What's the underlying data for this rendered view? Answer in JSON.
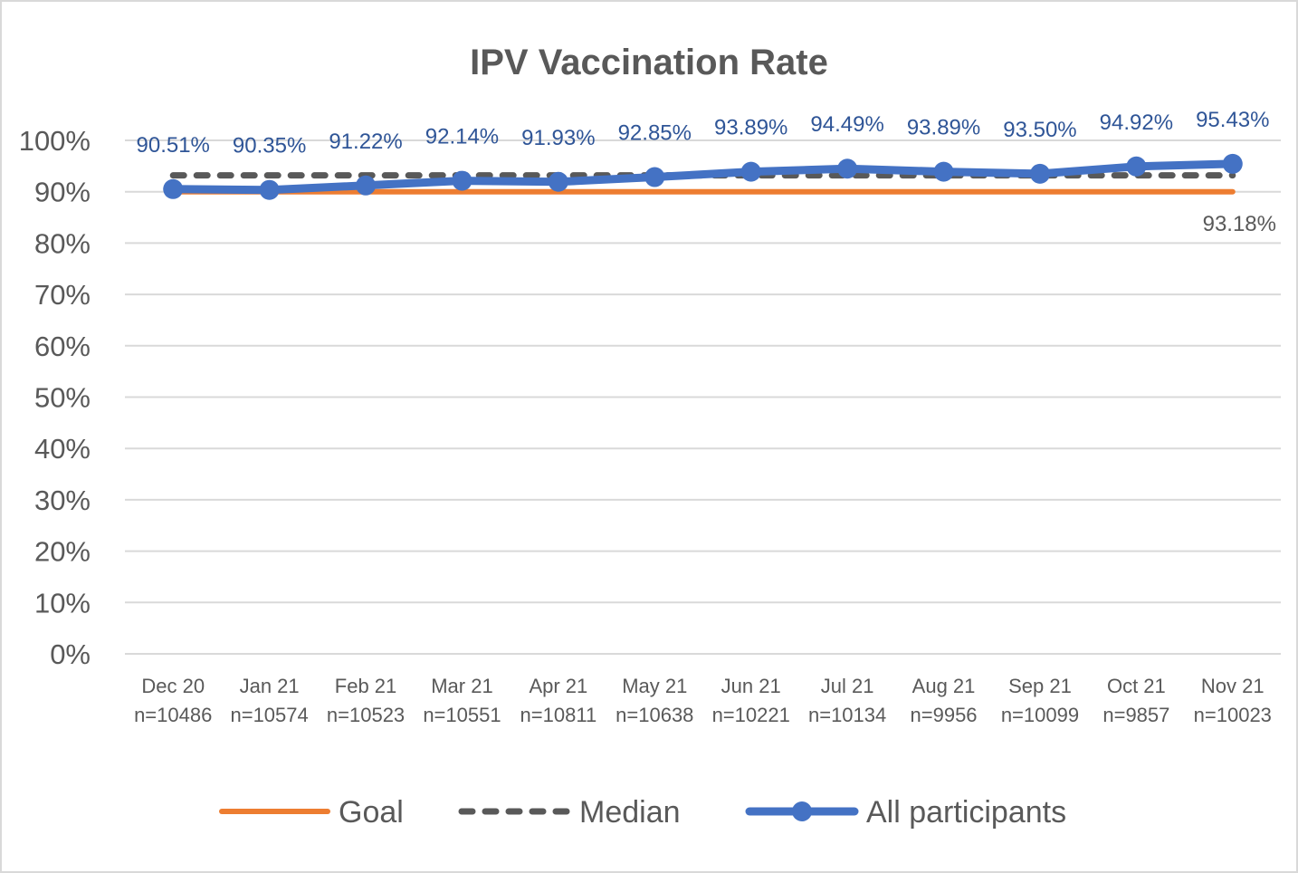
{
  "chart_data": {
    "type": "line",
    "title": "IPV  Vaccination Rate",
    "xlabel": "",
    "ylabel": "",
    "ylim": [
      0,
      100
    ],
    "yticks": [
      "0%",
      "10%",
      "20%",
      "30%",
      "40%",
      "50%",
      "60%",
      "70%",
      "80%",
      "90%",
      "100%"
    ],
    "grid": true,
    "legend_position": "bottom",
    "categories": [
      "Dec 20",
      "Jan 21",
      "Feb 21",
      "Mar 21",
      "Apr 21",
      "May 21",
      "Jun 21",
      "Jul 21",
      "Aug 21",
      "Sep 21",
      "Oct 21",
      "Nov 21"
    ],
    "category_n": [
      "n=10486",
      "n=10574",
      "n=10523",
      "n=10551",
      "n=10811",
      "n=10638",
      "n=10221",
      "n=10134",
      "n=9956",
      "n=10099",
      "n=9857",
      "n=10023"
    ],
    "series": [
      {
        "name": "Goal",
        "color": "#ed7d31",
        "style": "solid",
        "values": [
          90,
          90,
          90,
          90,
          90,
          90,
          90,
          90,
          90,
          90,
          90,
          90
        ]
      },
      {
        "name": "Median",
        "color": "#595959",
        "style": "dashed",
        "values": [
          93.18,
          93.18,
          93.18,
          93.18,
          93.18,
          93.18,
          93.18,
          93.18,
          93.18,
          93.18,
          93.18,
          93.18
        ],
        "label": "93.18%"
      },
      {
        "name": "All participants",
        "color": "#4472c4",
        "style": "solid-markers",
        "values": [
          90.51,
          90.35,
          91.22,
          92.14,
          91.93,
          92.85,
          93.89,
          94.49,
          93.89,
          93.5,
          94.92,
          95.43
        ],
        "labels": [
          "90.51%",
          "90.35%",
          "91.22%",
          "92.14%",
          "91.93%",
          "92.85%",
          "93.89%",
          "94.49%",
          "93.89%",
          "93.50%",
          "94.92%",
          "95.43%"
        ]
      }
    ]
  }
}
